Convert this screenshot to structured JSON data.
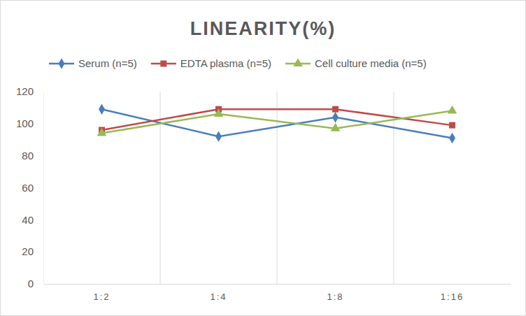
{
  "chart_data": {
    "type": "line",
    "title": "LINEARITY(%)",
    "categories": [
      "1:2",
      "1:4",
      "1:8",
      "1:16"
    ],
    "series": [
      {
        "name": "Serum (n=5)",
        "color": "#4a7ebb",
        "marker": "diamond",
        "values": [
          109,
          92,
          104,
          91
        ]
      },
      {
        "name": "EDTA plasma (n=5)",
        "color": "#be4b48",
        "marker": "square",
        "values": [
          96,
          109,
          109,
          99
        ]
      },
      {
        "name": "Cell culture media (n=5)",
        "color": "#98b954",
        "marker": "triangle",
        "values": [
          94,
          106,
          97,
          108
        ]
      }
    ],
    "ylim": [
      0,
      120
    ],
    "yticks": [
      0,
      20,
      40,
      60,
      80,
      100,
      120
    ],
    "grid": true,
    "legend": "top"
  }
}
